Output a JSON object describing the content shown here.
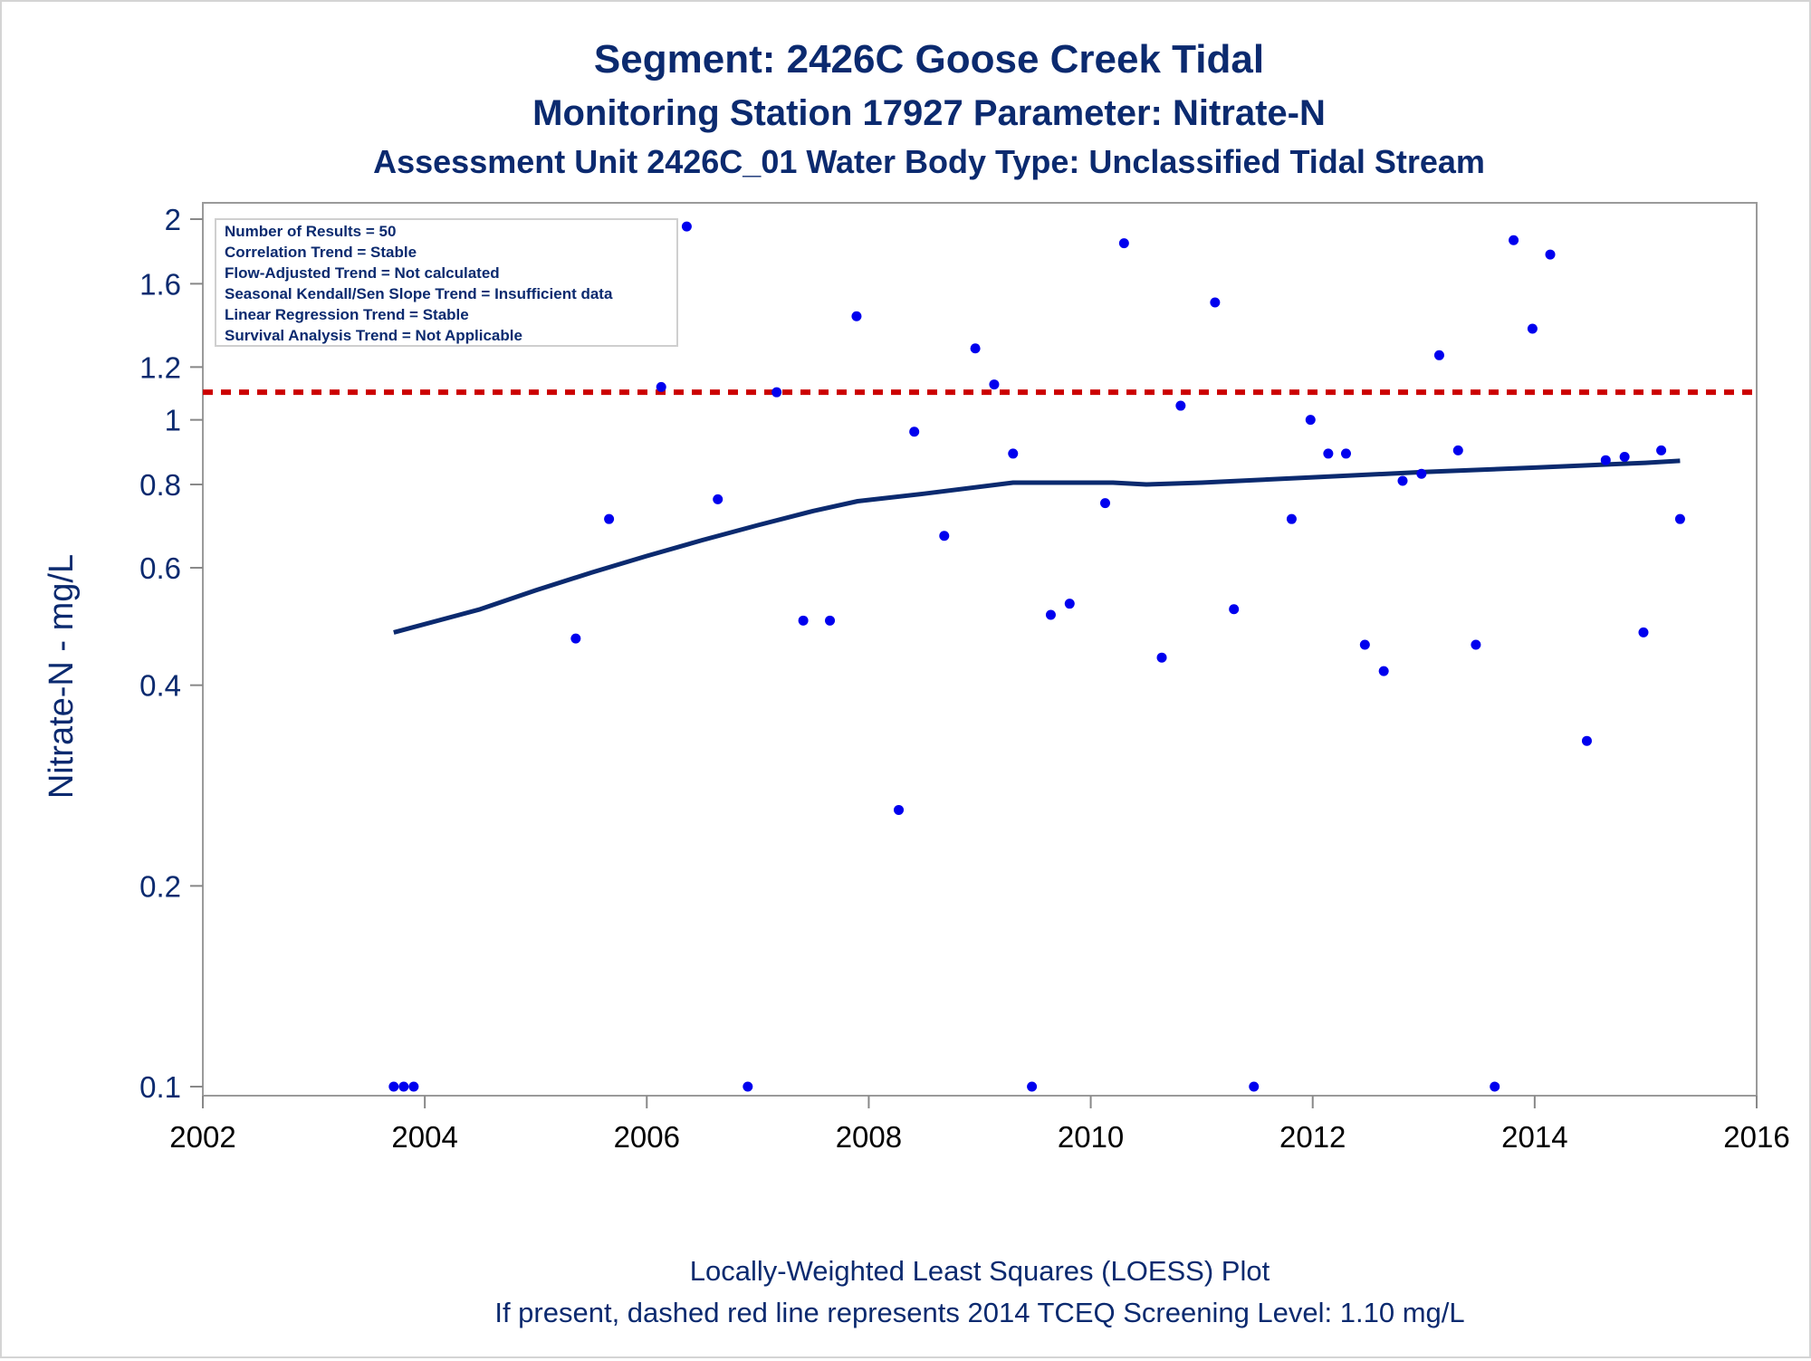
{
  "titles": {
    "line1": "Segment: 2426C  Goose Creek Tidal",
    "line2": "Monitoring Station 17927 Parameter: Nitrate-N",
    "line3": "Assessment Unit 2426C_01   Water Body Type: Unclassified Tidal Stream"
  },
  "footer": {
    "line1": "Locally-Weighted Least Squares (LOESS) Plot",
    "line2": "If present, dashed red line represents 2014 TCEQ Screening Level: 1.10 mg/L"
  },
  "stats_box": [
    "Number of Results = 50",
    "Correlation Trend = Stable",
    "Flow-Adjusted Trend = Not calculated",
    "Seasonal Kendall/Sen Slope Trend = Insufficient data",
    "Linear Regression Trend = Stable",
    "Survival Analysis Trend = Not Applicable"
  ],
  "chart_data": {
    "type": "scatter",
    "ylabel": "Nitrate-N - mg/L",
    "xlabel": "",
    "xlim": [
      2002,
      2016
    ],
    "ylim": [
      0.1,
      2
    ],
    "y_scale": "log",
    "x_ticks": [
      "2002",
      "2004",
      "2006",
      "2008",
      "2010",
      "2012",
      "2014",
      "2016"
    ],
    "y_ticks": [
      "0.1",
      "0.2",
      "0.4",
      "0.6",
      "0.8",
      "1",
      "1.2",
      "1.6",
      "2"
    ],
    "screening_level": 1.1,
    "colors": {
      "points": "#0000ee",
      "loess": "#0b2a6f",
      "screening": "#cc0000",
      "text": "#0b2a6f"
    },
    "points": [
      {
        "x": 2003.72,
        "y": 0.1
      },
      {
        "x": 2003.81,
        "y": 0.1
      },
      {
        "x": 2003.9,
        "y": 0.1
      },
      {
        "x": 2005.36,
        "y": 0.47
      },
      {
        "x": 2005.66,
        "y": 0.71
      },
      {
        "x": 2006.13,
        "y": 1.12
      },
      {
        "x": 2006.36,
        "y": 1.95
      },
      {
        "x": 2006.64,
        "y": 0.76
      },
      {
        "x": 2006.91,
        "y": 0.1
      },
      {
        "x": 2007.17,
        "y": 1.1
      },
      {
        "x": 2007.41,
        "y": 0.5
      },
      {
        "x": 2007.65,
        "y": 0.5
      },
      {
        "x": 2007.89,
        "y": 1.43
      },
      {
        "x": 2008.27,
        "y": 0.26
      },
      {
        "x": 2008.41,
        "y": 0.96
      },
      {
        "x": 2008.68,
        "y": 0.67
      },
      {
        "x": 2008.96,
        "y": 1.28
      },
      {
        "x": 2009.13,
        "y": 1.13
      },
      {
        "x": 2009.3,
        "y": 0.89
      },
      {
        "x": 2009.47,
        "y": 0.1
      },
      {
        "x": 2009.64,
        "y": 0.51
      },
      {
        "x": 2009.81,
        "y": 0.53
      },
      {
        "x": 2010.13,
        "y": 0.75
      },
      {
        "x": 2010.3,
        "y": 1.84
      },
      {
        "x": 2010.64,
        "y": 0.44
      },
      {
        "x": 2010.81,
        "y": 1.05
      },
      {
        "x": 2011.12,
        "y": 1.5
      },
      {
        "x": 2011.29,
        "y": 0.52
      },
      {
        "x": 2011.47,
        "y": 0.1
      },
      {
        "x": 2011.81,
        "y": 0.71
      },
      {
        "x": 2011.98,
        "y": 1.0
      },
      {
        "x": 2012.14,
        "y": 0.89
      },
      {
        "x": 2012.3,
        "y": 0.89
      },
      {
        "x": 2012.47,
        "y": 0.46
      },
      {
        "x": 2012.64,
        "y": 0.42
      },
      {
        "x": 2012.81,
        "y": 0.81
      },
      {
        "x": 2012.98,
        "y": 0.83
      },
      {
        "x": 2013.14,
        "y": 1.25
      },
      {
        "x": 2013.31,
        "y": 0.9
      },
      {
        "x": 2013.47,
        "y": 0.46
      },
      {
        "x": 2013.64,
        "y": 0.1
      },
      {
        "x": 2013.81,
        "y": 1.86
      },
      {
        "x": 2013.98,
        "y": 1.37
      },
      {
        "x": 2014.14,
        "y": 1.77
      },
      {
        "x": 2014.47,
        "y": 0.33
      },
      {
        "x": 2014.64,
        "y": 0.87
      },
      {
        "x": 2014.81,
        "y": 0.88
      },
      {
        "x": 2014.98,
        "y": 0.48
      },
      {
        "x": 2015.14,
        "y": 0.9
      },
      {
        "x": 2015.31,
        "y": 0.71
      }
    ],
    "loess": [
      {
        "x": 2003.72,
        "y": 0.48
      },
      {
        "x": 2004.5,
        "y": 0.52
      },
      {
        "x": 2005.0,
        "y": 0.555
      },
      {
        "x": 2005.5,
        "y": 0.59
      },
      {
        "x": 2006.0,
        "y": 0.625
      },
      {
        "x": 2006.5,
        "y": 0.66
      },
      {
        "x": 2007.0,
        "y": 0.695
      },
      {
        "x": 2007.5,
        "y": 0.73
      },
      {
        "x": 2007.9,
        "y": 0.755
      },
      {
        "x": 2008.5,
        "y": 0.775
      },
      {
        "x": 2009.3,
        "y": 0.805
      },
      {
        "x": 2010.2,
        "y": 0.805
      },
      {
        "x": 2010.5,
        "y": 0.8
      },
      {
        "x": 2011.0,
        "y": 0.805
      },
      {
        "x": 2012.0,
        "y": 0.82
      },
      {
        "x": 2013.0,
        "y": 0.835
      },
      {
        "x": 2014.0,
        "y": 0.848
      },
      {
        "x": 2015.0,
        "y": 0.862
      },
      {
        "x": 2015.31,
        "y": 0.868
      }
    ]
  }
}
